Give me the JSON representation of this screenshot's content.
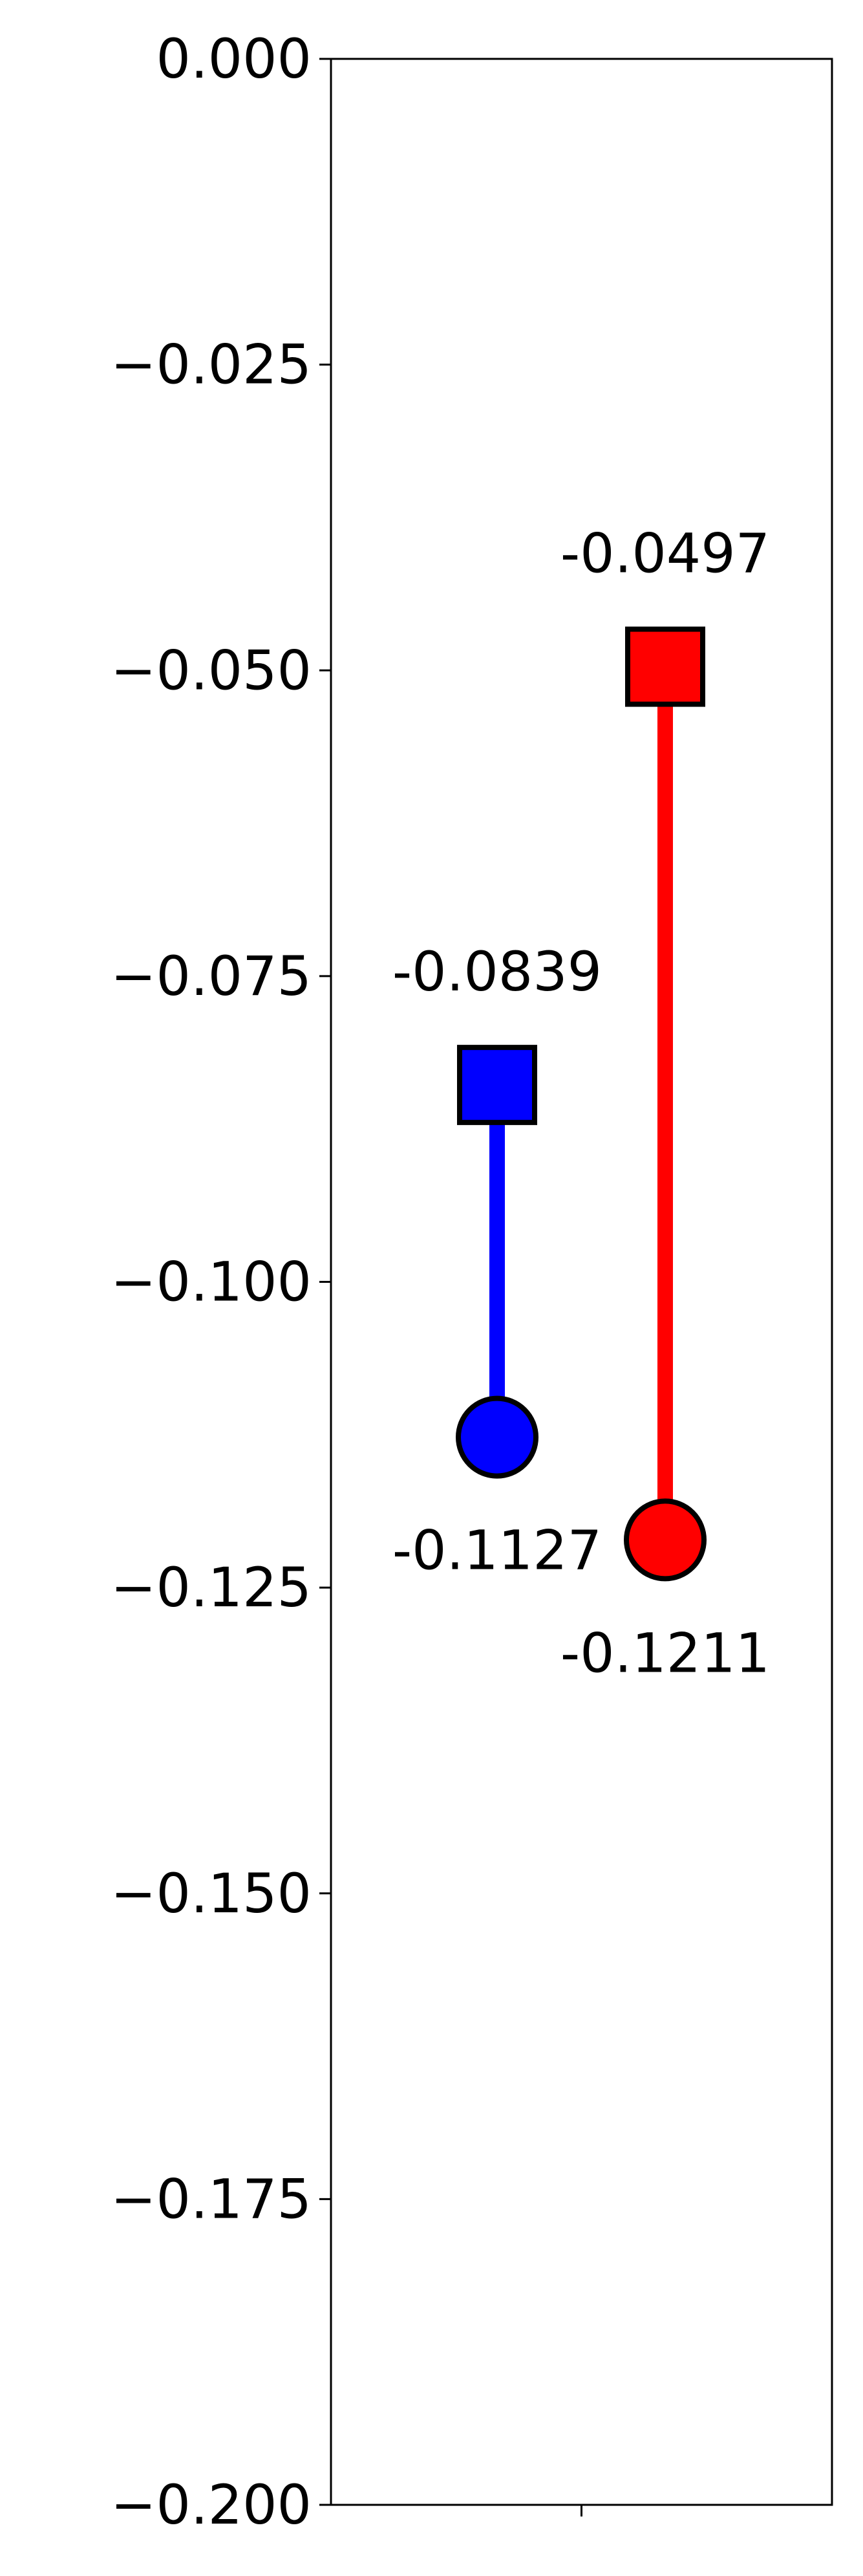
{
  "chart_data": {
    "type": "dumbbell",
    "ylim": [
      -0.2,
      0.0
    ],
    "yticks": [
      0.0,
      -0.025,
      -0.05,
      -0.075,
      -0.1,
      -0.125,
      -0.15,
      -0.175,
      -0.2
    ],
    "ytick_labels": [
      "0.000",
      "−0.025",
      "−0.050",
      "−0.075",
      "−0.100",
      "−0.125",
      "−0.150",
      "−0.175",
      "−0.200"
    ],
    "xticks": [
      ""
    ],
    "grid": false,
    "series": [
      {
        "color": "#0000ff",
        "square_value": -0.0839,
        "circle_value": -0.1127,
        "square_label": "-0.0839",
        "circle_label": "-0.1127"
      },
      {
        "color": "#ff0000",
        "square_value": -0.0497,
        "circle_value": -0.1211,
        "square_label": "-0.0497",
        "circle_label": "-0.1211"
      }
    ]
  }
}
